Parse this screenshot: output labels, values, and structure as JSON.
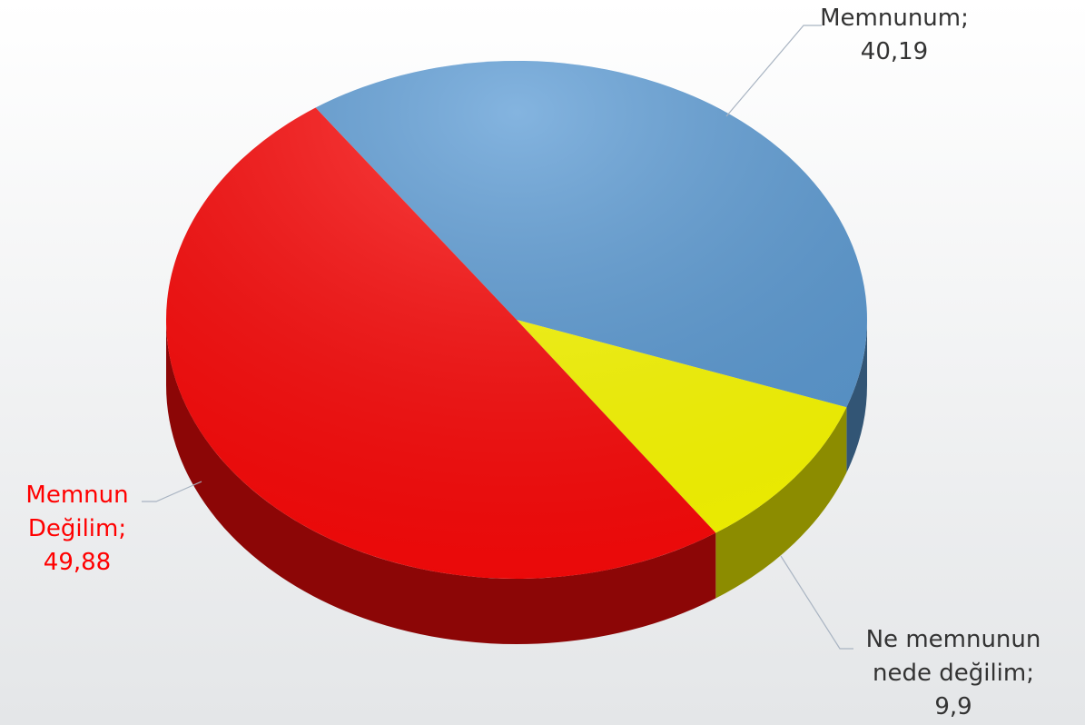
{
  "chart_data": {
    "type": "pie",
    "categories": [
      "Memnunum",
      "Ne memnunun nede değilim",
      "Memnun Değilim"
    ],
    "values": [
      40.19,
      9.9,
      49.88
    ],
    "value_labels": [
      "40,19",
      "9,9",
      "49,88"
    ],
    "label_separator": ";",
    "colors": [
      "#5b9bd5",
      "#ffff00",
      "#ff0a0a"
    ],
    "label_colors": [
      "#333333",
      "#333333",
      "#ff0000"
    ]
  }
}
